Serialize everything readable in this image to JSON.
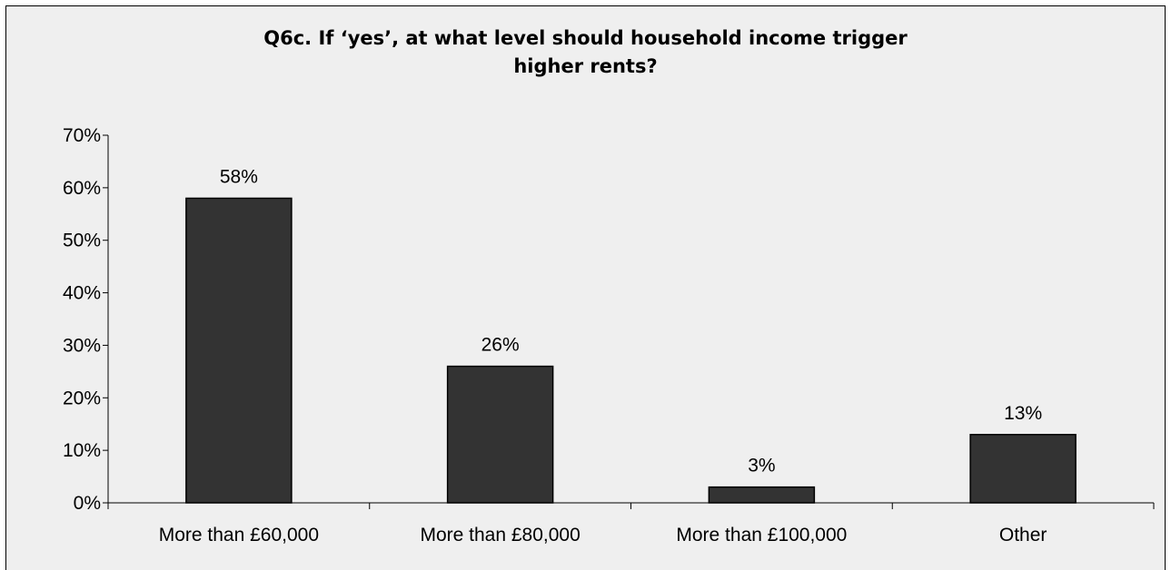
{
  "chart_data": {
    "type": "bar",
    "title_lines": [
      "Q6c. If ‘yes’, at what level should household income trigger",
      "higher rents?"
    ],
    "categories": [
      "More than £60,000",
      "More than £80,000",
      "More than £100,000",
      "Other"
    ],
    "values": [
      58,
      26,
      3,
      13
    ],
    "data_labels": [
      "58%",
      "26%",
      "3%",
      "13%"
    ],
    "yticks": [
      "0%",
      "10%",
      "20%",
      "30%",
      "40%",
      "50%",
      "60%",
      "70%"
    ],
    "ylim": [
      0,
      70
    ],
    "grid": false,
    "legend": "none",
    "bar_color": "#333333",
    "background_color": "#efefef"
  }
}
